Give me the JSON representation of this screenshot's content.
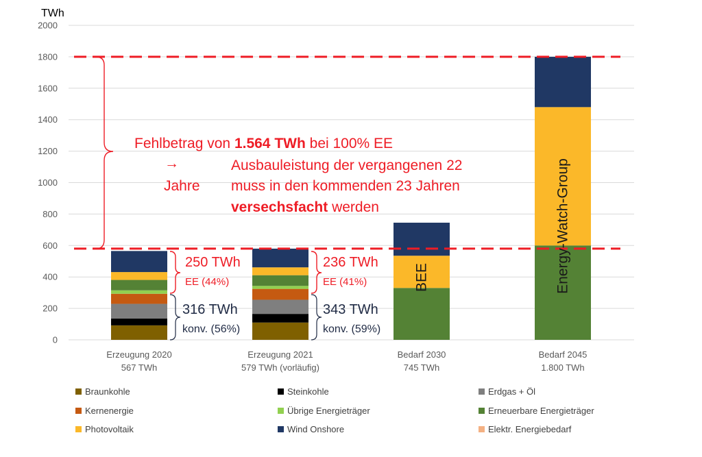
{
  "chart_data": {
    "type": "bar",
    "stacked": true,
    "unit_label": "TWh",
    "ylim": [
      0,
      2000
    ],
    "yticks": [
      0,
      200,
      400,
      600,
      800,
      1000,
      1200,
      1400,
      1600,
      1800,
      2000
    ],
    "grid": true,
    "legend_placement": "bottom",
    "categories": [
      {
        "line1": "Erzeugung 2020",
        "line2": "567 TWh"
      },
      {
        "line1": "Erzeugung 2021",
        "line2": "579 TWh (vorläufig)"
      },
      {
        "line1": "Bedarf 2030",
        "line2": "745 TWh"
      },
      {
        "line1": "Bedarf 2045",
        "line2": "1.800 TWh"
      }
    ],
    "series": [
      {
        "name": "Braunkohle",
        "color": "#7f6000",
        "values": [
          92,
          110,
          0,
          0
        ]
      },
      {
        "name": "Steinkohle",
        "color": "#000000",
        "values": [
          43,
          55,
          0,
          0
        ]
      },
      {
        "name": "Erdgas + Öl",
        "color": "#7f7f7f",
        "values": [
          94,
          90,
          0,
          0
        ]
      },
      {
        "name": "Kernenergie",
        "color": "#c55a11",
        "values": [
          64,
          69,
          0,
          0
        ]
      },
      {
        "name": "Übrige Energieträger",
        "color": "#92d050",
        "values": [
          22,
          19,
          0,
          0
        ]
      },
      {
        "name": "Erneuerbare Energieträger",
        "color": "#548235",
        "values": [
          66,
          68,
          330,
          600
        ]
      },
      {
        "name": "Photovoltaik",
        "color": "#fbb829",
        "values": [
          50,
          50,
          205,
          880
        ]
      },
      {
        "name": "Wind Onshore",
        "color": "#203864",
        "values": [
          134,
          119,
          210,
          320
        ]
      },
      {
        "name": "Elektr. Energiebedarf",
        "color": "#f4b183",
        "values": [
          0,
          0,
          0,
          0
        ]
      }
    ],
    "reference_lines": [
      {
        "value": 1800,
        "color": "#ee1c25",
        "style": "dashed"
      },
      {
        "value": 580,
        "color": "#ee1c25",
        "style": "dashed"
      }
    ],
    "bar_labels": [
      {
        "text": "BEE",
        "category": 2
      },
      {
        "text": "Energy-Watch-Group",
        "category": 3
      }
    ],
    "annotations": {
      "ee_2020": {
        "value": "250 TWh",
        "share": "EE (44%)"
      },
      "konv_2020": {
        "value": "316 TWh",
        "share": "konv. (56%)"
      },
      "ee_2021": {
        "value": "236 TWh",
        "share": "EE (41%)"
      },
      "konv_2021": {
        "value": "343 TWh",
        "share": "konv. (59%)"
      },
      "gap_line1_prefix": "Fehlbetrag von ",
      "gap_line1_bold": "1.564 TWh",
      "gap_line1_suffix": " bei 100% EE",
      "arrow": "→",
      "gap_line2": "Ausbauleistung der vergangenen 22",
      "gap_line2_end": "Jahre",
      "gap_line3": "muss in den kommenden 23 Jahren",
      "gap_line4_bold": "versechsfacht",
      "gap_line4_suffix": " werden"
    }
  }
}
